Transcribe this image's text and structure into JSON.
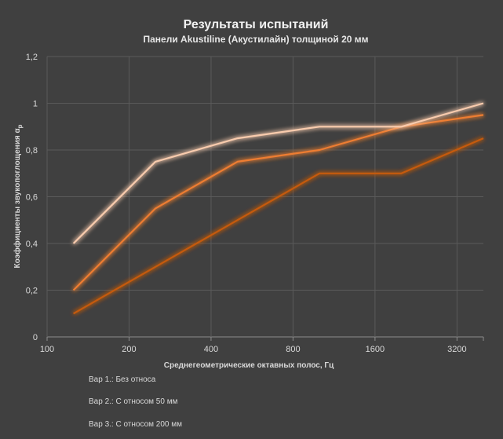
{
  "chart_data": {
    "type": "line",
    "title": "Результаты испытаний",
    "subtitle": "Панели Akustiline (Акустилайн) толщиной 20 мм",
    "xlabel": "Среднегеометрические октавных полос, Гц",
    "ylabel": "Коэффициенты звукопоглощения α",
    "ylabel_subscript": "p",
    "x_scale": "log2",
    "x_ticks": [
      "100",
      "200",
      "400",
      "800",
      "1600",
      "3200"
    ],
    "y_ticks": [
      "0",
      "0,2",
      "0,4",
      "0,6",
      "0,8",
      "1",
      "1,2"
    ],
    "xlim": [
      100,
      4000
    ],
    "ylim": [
      0,
      1.2
    ],
    "grid": true,
    "legend_position": "bottom-left",
    "x": [
      125,
      250,
      500,
      1000,
      2000,
      4000
    ],
    "series": [
      {
        "name": "Вар 1.: Без относа",
        "values": [
          0.1,
          0.3,
          0.5,
          0.7,
          0.7,
          0.85
        ],
        "color": "#c55a11"
      },
      {
        "name": "Вар 2.: С относом 50 мм",
        "values": [
          0.2,
          0.55,
          0.75,
          0.8,
          0.9,
          0.95
        ],
        "color": "#ed7d31"
      },
      {
        "name": "Вар 3.: С относом 200 мм",
        "values": [
          0.4,
          0.75,
          0.85,
          0.9,
          0.9,
          1.0
        ],
        "color": "#f8cbad"
      }
    ]
  }
}
